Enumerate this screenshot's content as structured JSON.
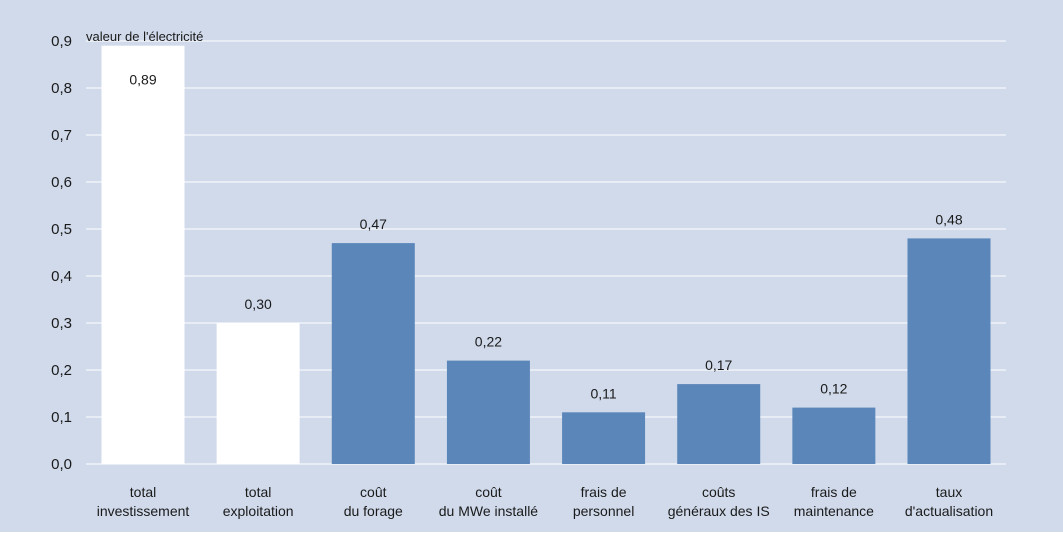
{
  "chart_data": {
    "type": "bar",
    "categories": [
      "total investissement",
      "total exploitation",
      "coût du forage",
      "coût du MWe installé",
      "frais de personnel",
      "coûts généraux des IS",
      "frais de maintenance",
      "taux d'actualisation"
    ],
    "category_lines": [
      [
        "total",
        "investissement"
      ],
      [
        "total",
        "exploitation"
      ],
      [
        "coût",
        "du forage"
      ],
      [
        "coût",
        "du MWe installé"
      ],
      [
        "frais de",
        "personnel"
      ],
      [
        "coûts",
        "généraux des IS"
      ],
      [
        "frais de",
        "maintenance"
      ],
      [
        "taux",
        "d'actualisation"
      ]
    ],
    "values": [
      0.89,
      0.3,
      0.47,
      0.22,
      0.11,
      0.17,
      0.12,
      0.48
    ],
    "value_labels": [
      "0,89",
      "0,30",
      "0,47",
      "0,22",
      "0,11",
      "0,17",
      "0,12",
      "0,48"
    ],
    "bar_colors": [
      "#ffffff",
      "#ffffff",
      "#5b86ba",
      "#5b86ba",
      "#5b86ba",
      "#5b86ba",
      "#5b86ba",
      "#5b86ba"
    ],
    "yticks": [
      0,
      0.1,
      0.2,
      0.3,
      0.4,
      0.5,
      0.6,
      0.7,
      0.8,
      0.9
    ],
    "ytick_labels": [
      "0,0",
      "0,1",
      "0,2",
      "0,3",
      "0,4",
      "0,5",
      "0,6",
      "0,7",
      "0,8",
      "0,9"
    ],
    "ylim": [
      0,
      0.9
    ],
    "annotation": "valeur de l'électricité",
    "title": "",
    "xlabel": "",
    "ylabel": "",
    "grid": true,
    "background_color": "#d0daeb",
    "gridline_color": "#ffffff"
  }
}
